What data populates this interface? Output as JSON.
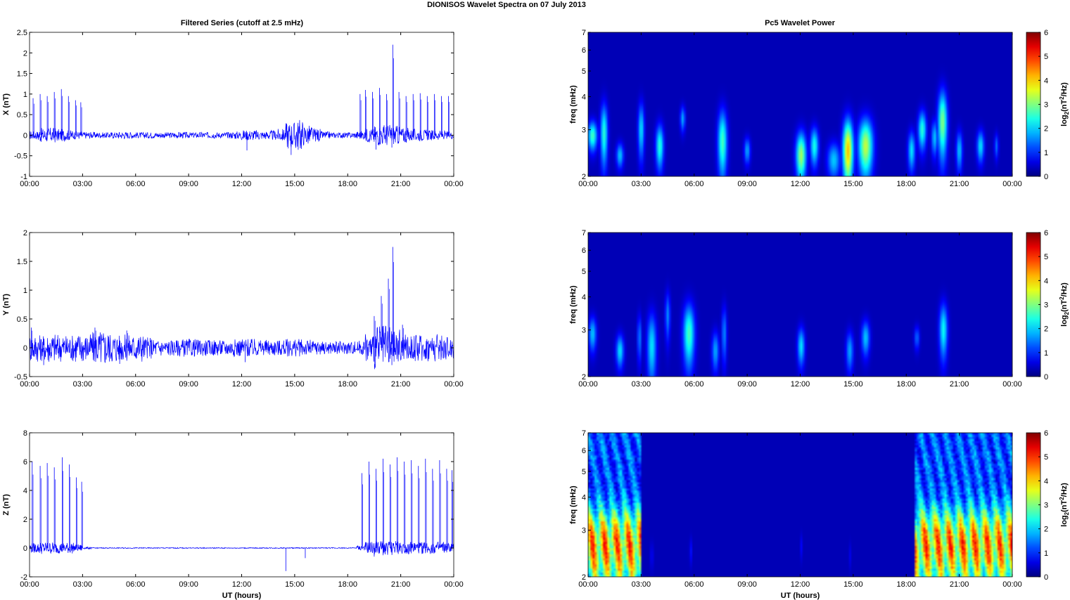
{
  "figure": {
    "title": "DIONISOS Wavelet Spectra on 07 July      2013",
    "left_title": "Filtered Series (cutoff at 2.5 mHz)",
    "right_title": "Pc5 Wavelet Power",
    "xlabel": "UT (hours)"
  },
  "colors": {
    "trace": "#0000ff",
    "colormap": "jet",
    "spectrogram_background": "#00008f"
  },
  "chart_data": [
    {
      "type": "line",
      "panel": "X",
      "ylabel": "X (nT)",
      "xlim": [
        0,
        24
      ],
      "ylim": [
        -1,
        2.5
      ],
      "xticks": [
        "00:00",
        "03:00",
        "06:00",
        "09:00",
        "12:00",
        "15:00",
        "18:00",
        "21:00",
        "00:00"
      ],
      "yticks": [
        "-1",
        "-0.5",
        "0",
        "0.5",
        "1",
        "1.5",
        "2",
        "2.5"
      ],
      "yvals": [
        -1,
        -0.5,
        0,
        0.5,
        1,
        1.5,
        2,
        2.5
      ],
      "series": [
        {
          "x": [
            0,
            0.5,
            1,
            1.5,
            2,
            2.5,
            3,
            3.5,
            4,
            4.5,
            5,
            5.5,
            6,
            6.5,
            7,
            7.5,
            8,
            8.5,
            9,
            9.5,
            10,
            10.5,
            11,
            11.5,
            12,
            12.5,
            13,
            13.5,
            14,
            14.5,
            15,
            15.5,
            16,
            16.5,
            17,
            17.5,
            18,
            18.5,
            19,
            19.5,
            20,
            20.5,
            21,
            21.5,
            22,
            22.5,
            23,
            23.5,
            24
          ],
          "y": [
            0.05,
            -0.1,
            0.15,
            -0.12,
            0.1,
            -0.08,
            0.06,
            -0.06,
            0.05,
            -0.05,
            0.06,
            -0.07,
            0.05,
            -0.05,
            0.06,
            -0.05,
            0.05,
            -0.06,
            0.05,
            -0.05,
            0.06,
            -0.05,
            0.05,
            -0.06,
            0.08,
            -0.1,
            0.08,
            -0.07,
            0.1,
            -0.12,
            0.35,
            -0.2,
            0.15,
            -0.08,
            0.05,
            -0.05,
            0.05,
            -0.05,
            0.1,
            -0.15,
            0.2,
            -0.18,
            0.15,
            -0.12,
            0.1,
            -0.1,
            0.08,
            -0.08,
            0.05
          ],
          "spikes": [
            [
              0.2,
              0.9
            ],
            [
              0.6,
              1.0
            ],
            [
              1.0,
              0.95
            ],
            [
              1.4,
              1.05
            ],
            [
              1.8,
              1.12
            ],
            [
              2.2,
              0.95
            ],
            [
              2.6,
              0.85
            ],
            [
              2.9,
              0.8
            ],
            [
              18.7,
              1.0
            ],
            [
              19.0,
              1.1
            ],
            [
              19.4,
              1.05
            ],
            [
              19.8,
              1.15
            ],
            [
              20.2,
              1.0
            ],
            [
              20.55,
              2.2
            ],
            [
              20.9,
              1.05
            ],
            [
              21.3,
              0.95
            ],
            [
              21.7,
              1.0
            ],
            [
              22.1,
              1.02
            ],
            [
              22.5,
              0.95
            ],
            [
              22.9,
              1.0
            ],
            [
              23.3,
              0.95
            ],
            [
              23.7,
              0.95
            ]
          ],
          "dips": [
            [
              12.3,
              -0.37
            ],
            [
              14.8,
              -0.48
            ],
            [
              19.6,
              -0.35
            ],
            [
              20.5,
              -0.3
            ]
          ]
        }
      ]
    },
    {
      "type": "line",
      "panel": "Y",
      "ylabel": "Y (nT)",
      "xlim": [
        0,
        24
      ],
      "ylim": [
        -0.5,
        2
      ],
      "xticks": [
        "00:00",
        "03:00",
        "06:00",
        "09:00",
        "12:00",
        "15:00",
        "18:00",
        "21:00",
        "00:00"
      ],
      "yticks": [
        "-0.5",
        "0",
        "0.5",
        "1",
        "1.5",
        "2"
      ],
      "yvals": [
        -0.5,
        0,
        0.5,
        1,
        1.5,
        2
      ],
      "series": [
        {
          "x": [
            0,
            0.5,
            1,
            1.5,
            2,
            2.5,
            3,
            3.5,
            4,
            4.5,
            5,
            5.5,
            6,
            6.5,
            7,
            7.5,
            8,
            8.5,
            9,
            9.5,
            10,
            10.5,
            11,
            11.5,
            12,
            12.5,
            13,
            13.5,
            14,
            14.5,
            15,
            15.5,
            16,
            16.5,
            17,
            17.5,
            18,
            18.5,
            19,
            19.5,
            20,
            20.5,
            21,
            21.5,
            22,
            22.5,
            23,
            23.5,
            24
          ],
          "y": [
            0.2,
            -0.15,
            0.18,
            -0.2,
            0.15,
            -0.18,
            0.2,
            -0.15,
            0.25,
            -0.2,
            0.18,
            -0.15,
            0.2,
            -0.15,
            0.12,
            -0.1,
            0.1,
            -0.1,
            0.12,
            -0.1,
            0.1,
            -0.1,
            0.1,
            -0.1,
            0.12,
            -0.12,
            0.1,
            -0.1,
            0.1,
            -0.1,
            0.12,
            -0.1,
            0.1,
            -0.08,
            0.08,
            -0.08,
            0.08,
            -0.08,
            0.1,
            0.25,
            0.3,
            -0.25,
            0.2,
            -0.15,
            0.18,
            -0.15,
            0.2,
            -0.15,
            0.15
          ],
          "spikes": [
            [
              0.1,
              0.35
            ],
            [
              3.7,
              0.35
            ],
            [
              5.5,
              0.3
            ],
            [
              19.5,
              0.55
            ],
            [
              19.9,
              0.9
            ],
            [
              20.3,
              1.2
            ],
            [
              20.55,
              1.75
            ],
            [
              21.1,
              0.4
            ]
          ],
          "dips": [
            [
              0.8,
              -0.3
            ],
            [
              5.1,
              -0.28
            ],
            [
              12.2,
              -0.25
            ],
            [
              20.5,
              -0.3
            ]
          ]
        }
      ]
    },
    {
      "type": "line",
      "panel": "Z",
      "ylabel": "Z (nT)",
      "xlabel": "UT (hours)",
      "xlim": [
        0,
        24
      ],
      "ylim": [
        -2,
        8
      ],
      "xticks": [
        "00:00",
        "03:00",
        "06:00",
        "09:00",
        "12:00",
        "15:00",
        "18:00",
        "21:00",
        "00:00"
      ],
      "yticks": [
        "-2",
        "0",
        "2",
        "4",
        "6",
        "8"
      ],
      "yvals": [
        -2,
        0,
        2,
        4,
        6,
        8
      ],
      "series": [
        {
          "x": [
            0,
            0.5,
            1,
            1.5,
            2,
            2.5,
            3,
            3.5,
            4,
            4.5,
            5,
            5.5,
            6,
            6.5,
            7,
            7.5,
            8,
            8.5,
            9,
            9.5,
            10,
            10.5,
            11,
            11.5,
            12,
            12.5,
            13,
            13.5,
            14,
            14.5,
            15,
            15.5,
            16,
            16.5,
            17,
            17.5,
            18,
            18.5,
            19,
            19.5,
            20,
            20.5,
            21,
            21.5,
            22,
            22.5,
            23,
            23.5,
            24
          ],
          "y": [
            0.2,
            -0.3,
            0.3,
            -0.3,
            0.25,
            -0.3,
            0.05,
            0.05,
            0.0,
            0.05,
            0.0,
            0.05,
            0.0,
            0.05,
            0.0,
            0.05,
            0.0,
            0.05,
            0.0,
            0.05,
            0.0,
            0.05,
            0.0,
            0.05,
            0.0,
            0.05,
            0.0,
            0.05,
            0.0,
            0.05,
            0.0,
            0.05,
            0.0,
            0.05,
            0.0,
            0.05,
            0.0,
            0.05,
            0.2,
            -0.4,
            0.3,
            -0.4,
            0.3,
            -0.3,
            0.3,
            -0.3,
            0.3,
            -0.3,
            0.2
          ],
          "spikes": [
            [
              0.15,
              6.0
            ],
            [
              0.6,
              5.7
            ],
            [
              1.0,
              5.9
            ],
            [
              1.4,
              5.6
            ],
            [
              1.85,
              6.3
            ],
            [
              2.25,
              5.8
            ],
            [
              2.65,
              4.9
            ],
            [
              2.95,
              4.6
            ],
            [
              18.8,
              5.2
            ],
            [
              19.2,
              6.0
            ],
            [
              19.6,
              5.5
            ],
            [
              20.0,
              6.2
            ],
            [
              20.4,
              5.8
            ],
            [
              20.8,
              6.3
            ],
            [
              21.2,
              6.0
            ],
            [
              21.6,
              6.1
            ],
            [
              22.0,
              5.7
            ],
            [
              22.4,
              6.2
            ],
            [
              22.8,
              5.5
            ],
            [
              23.2,
              6.1
            ],
            [
              23.6,
              5.5
            ],
            [
              23.9,
              5.4
            ]
          ],
          "dips": [
            [
              14.5,
              -1.6
            ],
            [
              15.6,
              -0.7
            ],
            [
              19.5,
              -0.6
            ],
            [
              20.0,
              -0.5
            ]
          ]
        }
      ]
    },
    {
      "type": "heatmap",
      "panel": "X",
      "ylabel": "freq (mHz)",
      "xlim": [
        0,
        24
      ],
      "ylim": [
        2,
        7
      ],
      "yscale": "log",
      "xticks": [
        "00:00",
        "03:00",
        "06:00",
        "09:00",
        "12:00",
        "15:00",
        "18:00",
        "21:00",
        "00:00"
      ],
      "yticks": [
        "2",
        "3",
        "4",
        "5",
        "6",
        "7"
      ],
      "yvals": [
        2,
        3,
        4,
        5,
        6,
        7
      ],
      "colorbar": {
        "label": "log2(nT2/Hz)",
        "ticks": [
          "0",
          "1",
          "2",
          "3",
          "4",
          "5",
          "6"
        ],
        "range": [
          0,
          6
        ]
      },
      "blobs": [
        {
          "t": 0.25,
          "f": 2.85,
          "dt": 0.18,
          "df": 0.25,
          "p": 2.6
        },
        {
          "t": 0.9,
          "f": 2.9,
          "dt": 0.14,
          "df": 0.55,
          "p": 2.4
        },
        {
          "t": 1.8,
          "f": 2.4,
          "dt": 0.14,
          "df": 0.18,
          "p": 1.8
        },
        {
          "t": 3.0,
          "f": 3.0,
          "dt": 0.12,
          "df": 0.5,
          "p": 2.0
        },
        {
          "t": 4.05,
          "f": 2.6,
          "dt": 0.15,
          "df": 0.35,
          "p": 2.4
        },
        {
          "t": 5.35,
          "f": 3.3,
          "dt": 0.1,
          "df": 0.25,
          "p": 1.6
        },
        {
          "t": 7.6,
          "f": 2.7,
          "dt": 0.18,
          "df": 0.55,
          "p": 2.6
        },
        {
          "t": 9.0,
          "f": 2.5,
          "dt": 0.12,
          "df": 0.2,
          "p": 1.6
        },
        {
          "t": 12.05,
          "f": 2.4,
          "dt": 0.2,
          "df": 0.35,
          "p": 3.2
        },
        {
          "t": 12.8,
          "f": 2.6,
          "dt": 0.16,
          "df": 0.3,
          "p": 2.3
        },
        {
          "t": 13.9,
          "f": 2.3,
          "dt": 0.25,
          "df": 0.25,
          "p": 1.8
        },
        {
          "t": 14.7,
          "f": 2.5,
          "dt": 0.2,
          "df": 0.5,
          "p": 4.2
        },
        {
          "t": 15.7,
          "f": 2.6,
          "dt": 0.28,
          "df": 0.45,
          "p": 3.4
        },
        {
          "t": 18.3,
          "f": 2.5,
          "dt": 0.14,
          "df": 0.3,
          "p": 2.0
        },
        {
          "t": 18.9,
          "f": 3.0,
          "dt": 0.16,
          "df": 0.35,
          "p": 2.4
        },
        {
          "t": 19.6,
          "f": 2.8,
          "dt": 0.12,
          "df": 0.3,
          "p": 1.8
        },
        {
          "t": 20.05,
          "f": 3.2,
          "dt": 0.18,
          "df": 0.65,
          "p": 3.0
        },
        {
          "t": 21.0,
          "f": 2.5,
          "dt": 0.12,
          "df": 0.3,
          "p": 1.8
        },
        {
          "t": 22.2,
          "f": 2.6,
          "dt": 0.14,
          "df": 0.25,
          "p": 2.0
        },
        {
          "t": 23.1,
          "f": 2.6,
          "dt": 0.08,
          "df": 0.2,
          "p": 1.2
        }
      ]
    },
    {
      "type": "heatmap",
      "panel": "Y",
      "ylabel": "freq (mHz)",
      "xlim": [
        0,
        24
      ],
      "ylim": [
        2,
        7
      ],
      "yscale": "log",
      "xticks": [
        "00:00",
        "03:00",
        "06:00",
        "09:00",
        "12:00",
        "15:00",
        "18:00",
        "21:00",
        "00:00"
      ],
      "yticks": [
        "2",
        "3",
        "4",
        "5",
        "6",
        "7"
      ],
      "yvals": [
        2,
        3,
        4,
        5,
        6,
        7
      ],
      "colorbar": {
        "label": "log2(nT2/Hz)",
        "ticks": [
          "0",
          "1",
          "2",
          "3",
          "4",
          "5",
          "6"
        ],
        "range": [
          0,
          6
        ]
      },
      "blobs": [
        {
          "t": 0.25,
          "f": 2.9,
          "dt": 0.15,
          "df": 0.3,
          "p": 1.8
        },
        {
          "t": 1.8,
          "f": 2.5,
          "dt": 0.15,
          "df": 0.25,
          "p": 2.0
        },
        {
          "t": 2.9,
          "f": 2.8,
          "dt": 0.08,
          "df": 0.4,
          "p": 1.4
        },
        {
          "t": 3.6,
          "f": 2.6,
          "dt": 0.18,
          "df": 0.55,
          "p": 2.0
        },
        {
          "t": 4.5,
          "f": 3.4,
          "dt": 0.1,
          "df": 0.5,
          "p": 1.4
        },
        {
          "t": 5.7,
          "f": 2.9,
          "dt": 0.22,
          "df": 0.55,
          "p": 2.6
        },
        {
          "t": 7.2,
          "f": 2.5,
          "dt": 0.14,
          "df": 0.3,
          "p": 1.6
        },
        {
          "t": 7.7,
          "f": 2.9,
          "dt": 0.1,
          "df": 0.5,
          "p": 1.4
        },
        {
          "t": 12.05,
          "f": 2.6,
          "dt": 0.14,
          "df": 0.3,
          "p": 2.0
        },
        {
          "t": 14.8,
          "f": 2.5,
          "dt": 0.14,
          "df": 0.3,
          "p": 1.6
        },
        {
          "t": 15.7,
          "f": 2.8,
          "dt": 0.16,
          "df": 0.3,
          "p": 1.8
        },
        {
          "t": 18.6,
          "f": 2.8,
          "dt": 0.1,
          "df": 0.2,
          "p": 1.2
        },
        {
          "t": 20.1,
          "f": 3.0,
          "dt": 0.16,
          "df": 0.5,
          "p": 2.2
        }
      ]
    },
    {
      "type": "heatmap",
      "panel": "Z",
      "ylabel": "freq (mHz)",
      "xlabel": "UT (hours)",
      "xlim": [
        0,
        24
      ],
      "ylim": [
        2,
        7
      ],
      "yscale": "log",
      "xticks": [
        "00:00",
        "03:00",
        "06:00",
        "09:00",
        "12:00",
        "15:00",
        "18:00",
        "21:00",
        "00:00"
      ],
      "yticks": [
        "2",
        "3",
        "4",
        "5",
        "6",
        "7"
      ],
      "yvals": [
        2,
        3,
        4,
        5,
        6,
        7
      ],
      "colorbar": {
        "label": "log2(nT2/Hz)",
        "ticks": [
          "0",
          "1",
          "2",
          "3",
          "4",
          "5",
          "6"
        ],
        "range": [
          0,
          6
        ]
      },
      "active_intervals": [
        [
          0.0,
          2.95
        ],
        [
          18.5,
          24.0
        ]
      ],
      "active_peak_freq_mHz": 2.65,
      "active_peak_power": 5.0,
      "blobs": [
        {
          "t": 3.6,
          "f": 2.4,
          "dt": 0.05,
          "df": 0.2,
          "p": 0.6
        },
        {
          "t": 5.8,
          "f": 2.5,
          "dt": 0.05,
          "df": 0.2,
          "p": 0.6
        },
        {
          "t": 12.05,
          "f": 2.6,
          "dt": 0.04,
          "df": 0.2,
          "p": 0.5
        },
        {
          "t": 14.8,
          "f": 2.4,
          "dt": 0.04,
          "df": 0.2,
          "p": 0.4
        }
      ]
    }
  ]
}
